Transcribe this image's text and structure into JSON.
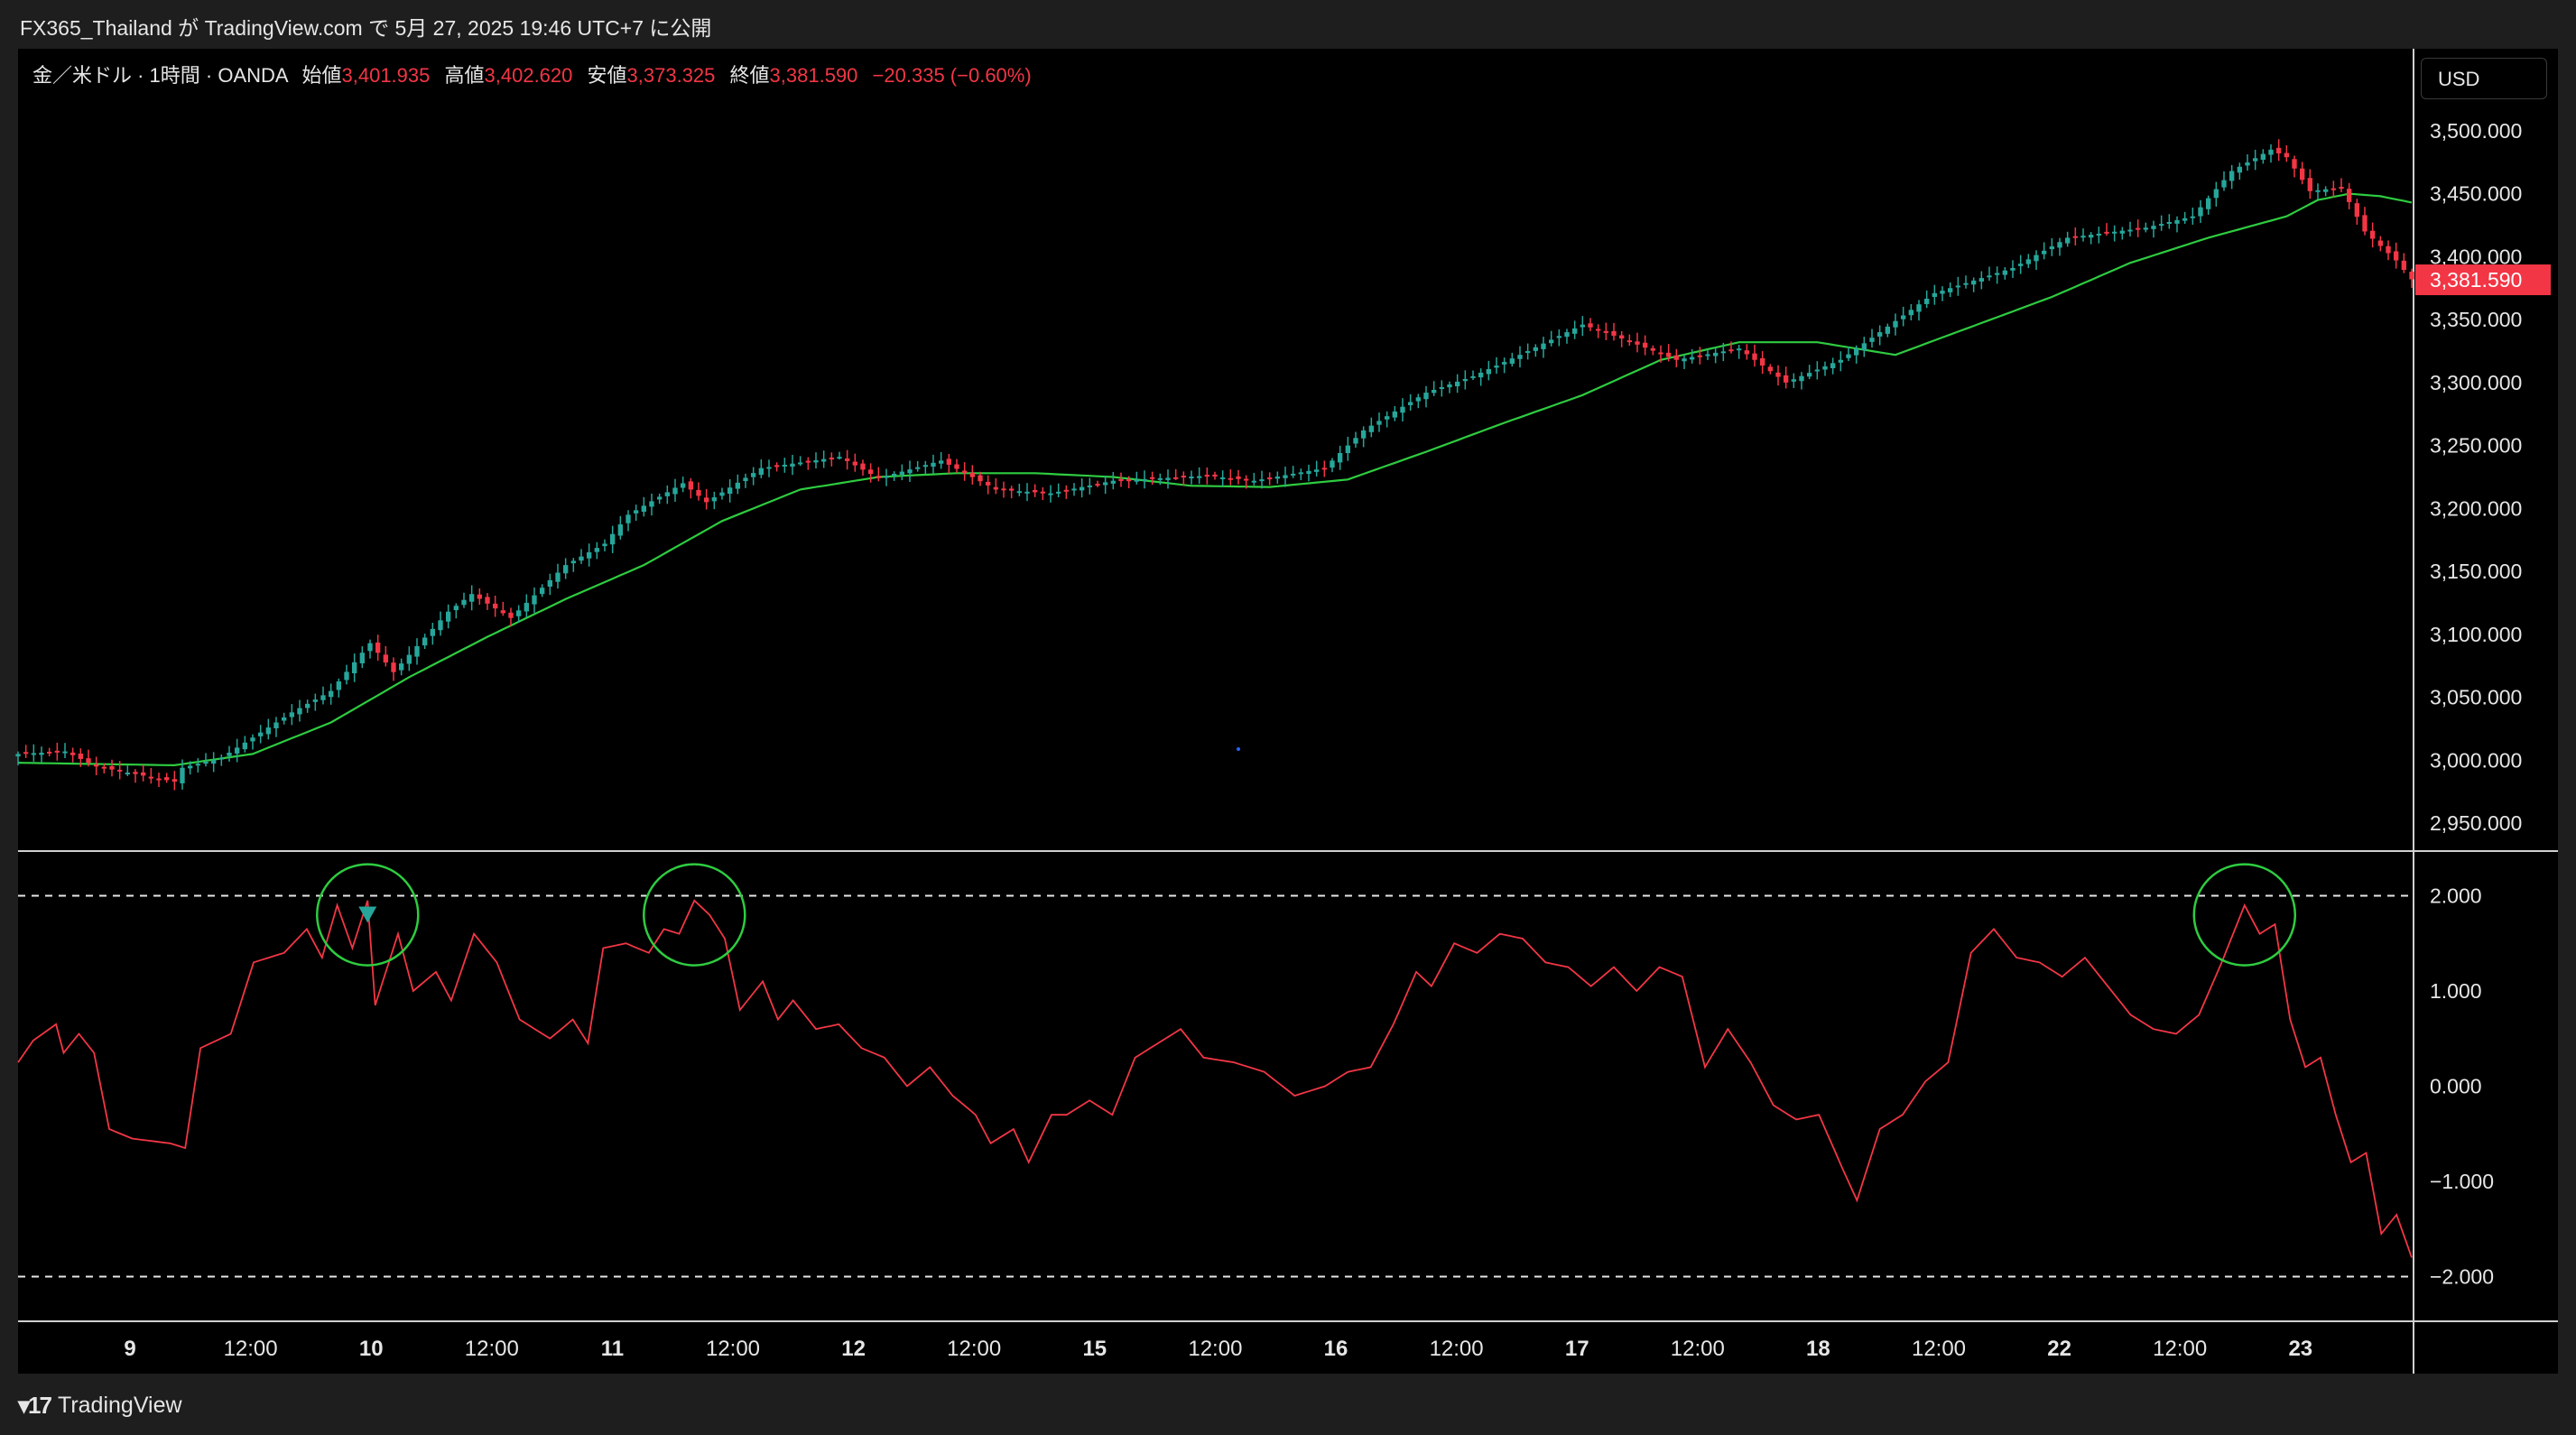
{
  "header": {
    "title": "FX365_Thailand が TradingView.com で 5月 27, 2025 19:46 UTC+7 に公開"
  },
  "legend": {
    "symbol": "金／米ドル · 1時間 · OANDA",
    "open_label": "始値",
    "open": "3,401.935",
    "high_label": "高値",
    "high": "3,402.620",
    "low_label": "安値",
    "low": "3,373.325",
    "close_label": "終値",
    "close": "3,381.590",
    "change": "−20.335 (−0.60%)"
  },
  "currency": "USD",
  "last_price_label": "3,381.590",
  "footer": {
    "brand": "TradingView"
  },
  "colors": {
    "up": "#26a69a",
    "down": "#f23645",
    "ma": "#2ecc40",
    "oscillator": "#f23645",
    "circle": "#2ecc40",
    "background": "#000000"
  },
  "chart_data": [
    {
      "type": "candlestick",
      "title": "",
      "y_ticks": [
        "3,500.000",
        "3,450.000",
        "3,400.000",
        "3,350.000",
        "3,300.000",
        "3,250.000",
        "3,200.000",
        "3,150.000",
        "3,100.000",
        "3,050.000",
        "3,000.000",
        "2,950.000"
      ],
      "y_tick_values": [
        3500,
        3450,
        3400,
        3350,
        3300,
        3250,
        3200,
        3150,
        3100,
        3050,
        3000,
        2950
      ],
      "ylim": [
        2930,
        3525
      ],
      "x_ticks": [
        "9",
        "12:00",
        "10",
        "12:00",
        "11",
        "12:00",
        "12",
        "12:00",
        "15",
        "12:00",
        "16",
        "12:00",
        "17",
        "12:00",
        "18",
        "12:00",
        "22",
        "12:00",
        "23"
      ],
      "x_tick_bold": [
        true,
        false,
        true,
        false,
        true,
        false,
        true,
        false,
        true,
        false,
        true,
        false,
        true,
        false,
        true,
        false,
        true,
        false,
        true
      ],
      "close_anchors": [
        [
          0,
          3005
        ],
        [
          6,
          3007
        ],
        [
          10,
          2995
        ],
        [
          20,
          2983
        ],
        [
          21,
          2994
        ],
        [
          26,
          3002
        ],
        [
          35,
          3038
        ],
        [
          40,
          3055
        ],
        [
          45,
          3093
        ],
        [
          48,
          3070
        ],
        [
          55,
          3118
        ],
        [
          58,
          3132
        ],
        [
          63,
          3113
        ],
        [
          70,
          3155
        ],
        [
          75,
          3172
        ],
        [
          78,
          3195
        ],
        [
          85,
          3220
        ],
        [
          88,
          3205
        ],
        [
          95,
          3232
        ],
        [
          105,
          3241
        ],
        [
          110,
          3224
        ],
        [
          118,
          3238
        ],
        [
          125,
          3215
        ],
        [
          132,
          3212
        ],
        [
          140,
          3222
        ],
        [
          152,
          3226
        ],
        [
          158,
          3222
        ],
        [
          167,
          3232
        ],
        [
          172,
          3262
        ],
        [
          180,
          3292
        ],
        [
          186,
          3305
        ],
        [
          192,
          3322
        ],
        [
          200,
          3346
        ],
        [
          205,
          3335
        ],
        [
          212,
          3318
        ],
        [
          220,
          3327
        ],
        [
          226,
          3300
        ],
        [
          233,
          3318
        ],
        [
          238,
          3340
        ],
        [
          245,
          3371
        ],
        [
          255,
          3391
        ],
        [
          262,
          3415
        ],
        [
          272,
          3423
        ],
        [
          278,
          3432
        ],
        [
          283,
          3468
        ],
        [
          288,
          3485
        ],
        [
          290,
          3479
        ],
        [
          293,
          3452
        ],
        [
          297,
          3455
        ],
        [
          300,
          3420
        ],
        [
          304,
          3397
        ],
        [
          306,
          3382
        ]
      ],
      "ma_anchors": [
        [
          0,
          2998
        ],
        [
          10,
          2997
        ],
        [
          20,
          2996
        ],
        [
          30,
          3005
        ],
        [
          40,
          3030
        ],
        [
          50,
          3066
        ],
        [
          60,
          3098
        ],
        [
          70,
          3128
        ],
        [
          80,
          3155
        ],
        [
          90,
          3190
        ],
        [
          100,
          3215
        ],
        [
          110,
          3225
        ],
        [
          120,
          3228
        ],
        [
          130,
          3228
        ],
        [
          140,
          3225
        ],
        [
          150,
          3218
        ],
        [
          160,
          3217
        ],
        [
          170,
          3223
        ],
        [
          180,
          3245
        ],
        [
          190,
          3268
        ],
        [
          200,
          3290
        ],
        [
          210,
          3318
        ],
        [
          220,
          3332
        ],
        [
          230,
          3332
        ],
        [
          240,
          3322
        ],
        [
          250,
          3345
        ],
        [
          260,
          3368
        ],
        [
          270,
          3395
        ],
        [
          280,
          3415
        ],
        [
          290,
          3432
        ],
        [
          294,
          3445
        ],
        [
          298,
          3450
        ],
        [
          302,
          3448
        ],
        [
          306,
          3443
        ]
      ],
      "last_price": 3381.59
    },
    {
      "type": "line",
      "title": "",
      "y_ticks": [
        "2.000",
        "1.000",
        "0.000",
        "−1.000",
        "−2.000"
      ],
      "y_tick_values": [
        2,
        1,
        0,
        -1,
        -2
      ],
      "ylim": [
        -2.45,
        2.45
      ],
      "reference_lines": [
        2,
        -2
      ],
      "anchors": [
        [
          0,
          0.25
        ],
        [
          2,
          0.48
        ],
        [
          5,
          0.65
        ],
        [
          6,
          0.35
        ],
        [
          8,
          0.55
        ],
        [
          10,
          0.35
        ],
        [
          12,
          -0.45
        ],
        [
          15,
          -0.55
        ],
        [
          20,
          -0.6
        ],
        [
          22,
          -0.65
        ],
        [
          24,
          0.4
        ],
        [
          28,
          0.55
        ],
        [
          31,
          1.3
        ],
        [
          35,
          1.4
        ],
        [
          38,
          1.65
        ],
        [
          40,
          1.35
        ],
        [
          42,
          1.9
        ],
        [
          44,
          1.45
        ],
        [
          46,
          1.95
        ],
        [
          47,
          0.85
        ],
        [
          50,
          1.6
        ],
        [
          52,
          1.0
        ],
        [
          55,
          1.2
        ],
        [
          57,
          0.9
        ],
        [
          60,
          1.6
        ],
        [
          63,
          1.3
        ],
        [
          66,
          0.7
        ],
        [
          70,
          0.5
        ],
        [
          73,
          0.7
        ],
        [
          75,
          0.45
        ],
        [
          77,
          1.45
        ],
        [
          80,
          1.5
        ],
        [
          83,
          1.4
        ],
        [
          85,
          1.65
        ],
        [
          87,
          1.6
        ],
        [
          89,
          1.95
        ],
        [
          91,
          1.8
        ],
        [
          93,
          1.55
        ],
        [
          95,
          0.8
        ],
        [
          98,
          1.1
        ],
        [
          100,
          0.7
        ],
        [
          102,
          0.9
        ],
        [
          105,
          0.6
        ],
        [
          108,
          0.65
        ],
        [
          111,
          0.4
        ],
        [
          114,
          0.3
        ],
        [
          117,
          0.0
        ],
        [
          120,
          0.2
        ],
        [
          123,
          -0.1
        ],
        [
          126,
          -0.3
        ],
        [
          128,
          -0.6
        ],
        [
          131,
          -0.45
        ],
        [
          133,
          -0.8
        ],
        [
          136,
          -0.3
        ],
        [
          138,
          -0.3
        ],
        [
          141,
          -0.15
        ],
        [
          144,
          -0.3
        ],
        [
          147,
          0.3
        ],
        [
          150,
          0.45
        ],
        [
          153,
          0.6
        ],
        [
          156,
          0.3
        ],
        [
          160,
          0.25
        ],
        [
          164,
          0.15
        ],
        [
          168,
          -0.1
        ],
        [
          172,
          0.0
        ],
        [
          175,
          0.15
        ],
        [
          178,
          0.2
        ],
        [
          181,
          0.65
        ],
        [
          184,
          1.2
        ],
        [
          186,
          1.05
        ],
        [
          189,
          1.5
        ],
        [
          192,
          1.4
        ],
        [
          195,
          1.6
        ],
        [
          198,
          1.55
        ],
        [
          201,
          1.3
        ],
        [
          204,
          1.25
        ],
        [
          207,
          1.05
        ],
        [
          210,
          1.25
        ],
        [
          213,
          1.0
        ],
        [
          216,
          1.25
        ],
        [
          219,
          1.15
        ],
        [
          222,
          0.2
        ],
        [
          225,
          0.6
        ],
        [
          228,
          0.25
        ],
        [
          231,
          -0.2
        ],
        [
          234,
          -0.35
        ],
        [
          237,
          -0.3
        ],
        [
          240,
          -0.85
        ],
        [
          242,
          -1.2
        ],
        [
          245,
          -0.45
        ],
        [
          248,
          -0.3
        ],
        [
          251,
          0.05
        ],
        [
          254,
          0.25
        ],
        [
          257,
          1.4
        ],
        [
          260,
          1.65
        ],
        [
          263,
          1.35
        ],
        [
          266,
          1.3
        ],
        [
          269,
          1.15
        ],
        [
          272,
          1.35
        ],
        [
          275,
          1.05
        ],
        [
          278,
          0.75
        ],
        [
          281,
          0.6
        ],
        [
          284,
          0.55
        ],
        [
          287,
          0.75
        ],
        [
          290,
          1.3
        ],
        [
          293,
          1.9
        ],
        [
          295,
          1.6
        ],
        [
          297,
          1.7
        ],
        [
          299,
          0.7
        ],
        [
          301,
          0.2
        ],
        [
          303,
          0.3
        ],
        [
          305,
          -0.3
        ],
        [
          307,
          -0.8
        ],
        [
          309,
          -0.7
        ],
        [
          311,
          -1.55
        ],
        [
          313,
          -1.35
        ],
        [
          315,
          -1.8
        ]
      ],
      "highlight_circles_at_index": [
        46,
        89,
        293
      ]
    }
  ]
}
